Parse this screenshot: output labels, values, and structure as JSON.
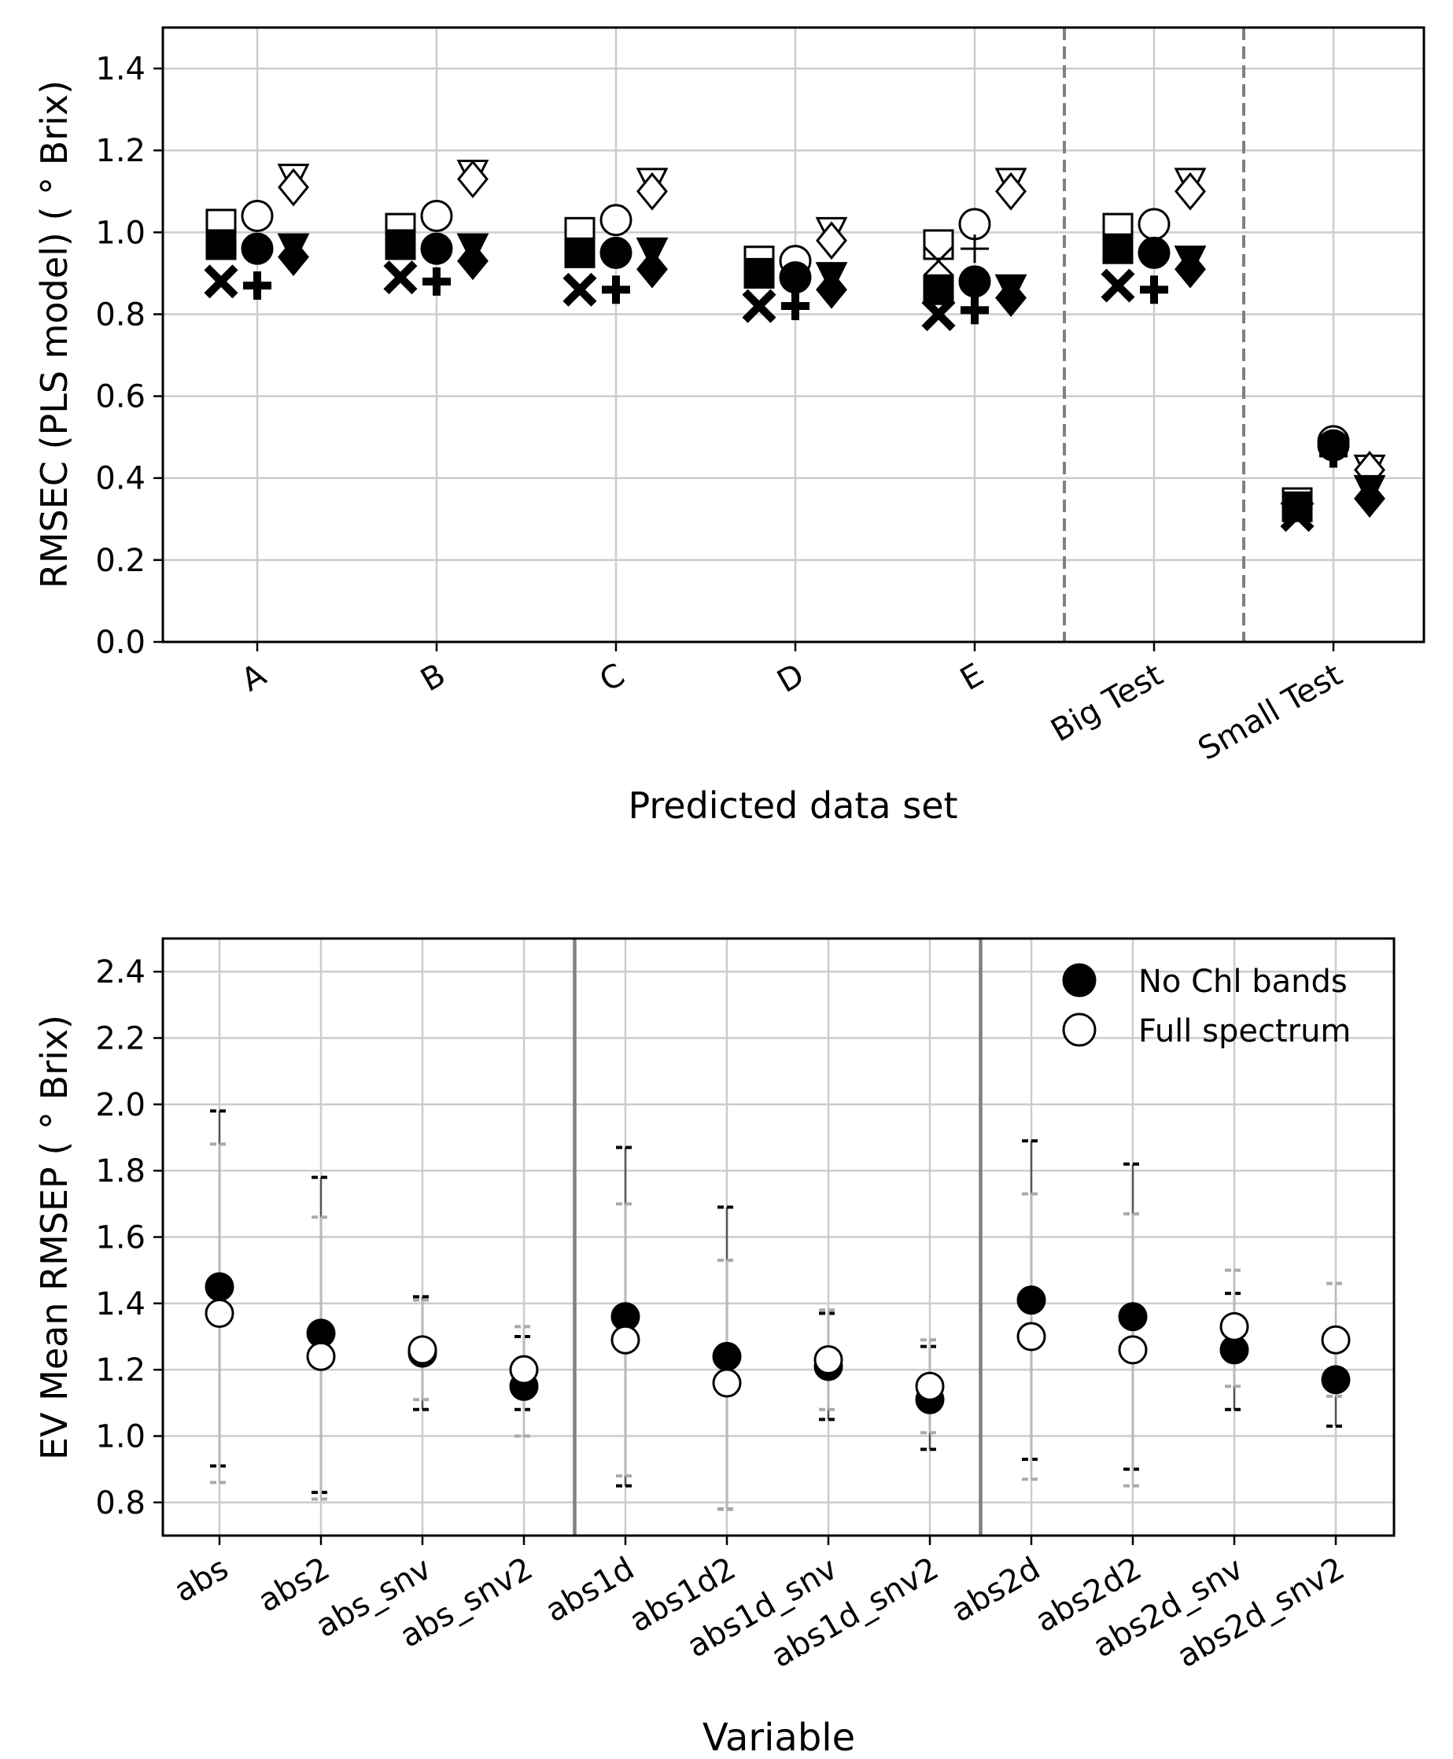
{
  "chart_data": [
    {
      "type": "scatter",
      "title": "",
      "xlabel": "Predicted data set",
      "ylabel": "RMSEC (PLS model) ( ° Brix)",
      "ylim": [
        0.0,
        1.5
      ],
      "yticks": [
        "0.0",
        "0.2",
        "0.4",
        "0.6",
        "0.8",
        "1.0",
        "1.2",
        "1.4"
      ],
      "grid": true,
      "categories": [
        "A",
        "B",
        "C",
        "D",
        "E",
        "Big Test",
        "Small Test"
      ],
      "separators_after": [
        "E",
        "Big Test"
      ],
      "series": [
        {
          "marker": "square-open",
          "values": [
            1.02,
            1.01,
            1.0,
            0.93,
            0.97,
            1.01,
            0.34
          ]
        },
        {
          "marker": "square-filled",
          "values": [
            0.97,
            0.97,
            0.95,
            0.9,
            0.86,
            0.96,
            0.33
          ]
        },
        {
          "marker": "x-filled",
          "values": [
            0.88,
            0.89,
            0.86,
            0.82,
            0.8,
            0.87,
            0.31
          ]
        },
        {
          "marker": "x-thin",
          "values": [
            null,
            null,
            null,
            null,
            0.93,
            null,
            null
          ]
        },
        {
          "marker": "circle-open",
          "values": [
            1.04,
            1.04,
            1.03,
            0.93,
            1.02,
            1.02,
            0.49
          ]
        },
        {
          "marker": "circle-filled",
          "values": [
            0.96,
            0.96,
            0.95,
            0.89,
            0.88,
            0.95,
            0.48
          ]
        },
        {
          "marker": "plus-filled",
          "values": [
            0.87,
            0.88,
            0.86,
            0.82,
            0.81,
            0.86,
            0.46
          ]
        },
        {
          "marker": "plus-thin",
          "values": [
            null,
            null,
            null,
            null,
            0.96,
            null,
            null
          ]
        },
        {
          "marker": "triangle-open",
          "values": [
            1.13,
            1.14,
            1.12,
            1.0,
            1.12,
            1.12,
            0.42
          ]
        },
        {
          "marker": "diamond-open",
          "values": [
            1.11,
            1.13,
            1.1,
            0.98,
            1.1,
            1.1,
            0.42
          ]
        },
        {
          "marker": "triangle-filled",
          "values": [
            0.96,
            0.96,
            0.95,
            0.89,
            0.86,
            0.93,
            0.37
          ]
        },
        {
          "marker": "diamond-filled",
          "values": [
            0.94,
            0.93,
            0.91,
            0.86,
            0.84,
            0.91,
            0.35
          ]
        }
      ]
    },
    {
      "type": "scatter",
      "title": "",
      "xlabel": "Variable",
      "ylabel": "EV Mean RMSEP ( ° Brix)",
      "ylim": [
        0.7,
        2.5
      ],
      "yticks": [
        "0.8",
        "1.0",
        "1.2",
        "1.4",
        "1.6",
        "1.8",
        "2.0",
        "2.2",
        "2.4"
      ],
      "grid": true,
      "legend_position": "top-right",
      "categories": [
        "abs",
        "abs2",
        "abs_snv",
        "abs_snv2",
        "abs1d",
        "abs1d2",
        "abs1d_snv",
        "abs1d_snv2",
        "abs2d",
        "abs2d2",
        "abs2d_snv",
        "abs2d_snv2"
      ],
      "separators_after": [
        "abs_snv2",
        "abs1d_snv2"
      ],
      "series": [
        {
          "name": "No Chl bands",
          "color": "#000000",
          "values": [
            1.45,
            1.31,
            1.25,
            1.15,
            1.36,
            1.24,
            1.21,
            1.11,
            1.41,
            1.36,
            1.26,
            1.17
          ],
          "err_low": [
            0.91,
            0.83,
            1.08,
            1.08,
            0.85,
            0.78,
            1.05,
            0.96,
            0.93,
            0.9,
            1.08,
            1.03
          ],
          "err_high": [
            1.98,
            1.78,
            1.42,
            1.3,
            1.87,
            1.69,
            1.37,
            1.27,
            1.89,
            1.82,
            1.43,
            1.29
          ]
        },
        {
          "name": "Full spectrum",
          "color": "#ffffff",
          "values": [
            1.37,
            1.24,
            1.26,
            1.2,
            1.29,
            1.16,
            1.23,
            1.15,
            1.3,
            1.26,
            1.33,
            1.29
          ],
          "err_low": [
            0.86,
            0.81,
            1.11,
            1.0,
            0.88,
            0.78,
            1.08,
            1.01,
            0.87,
            0.85,
            1.15,
            1.12
          ],
          "err_high": [
            1.88,
            1.66,
            1.41,
            1.33,
            1.7,
            1.53,
            1.38,
            1.29,
            1.73,
            1.67,
            1.5,
            1.46
          ]
        }
      ]
    }
  ]
}
